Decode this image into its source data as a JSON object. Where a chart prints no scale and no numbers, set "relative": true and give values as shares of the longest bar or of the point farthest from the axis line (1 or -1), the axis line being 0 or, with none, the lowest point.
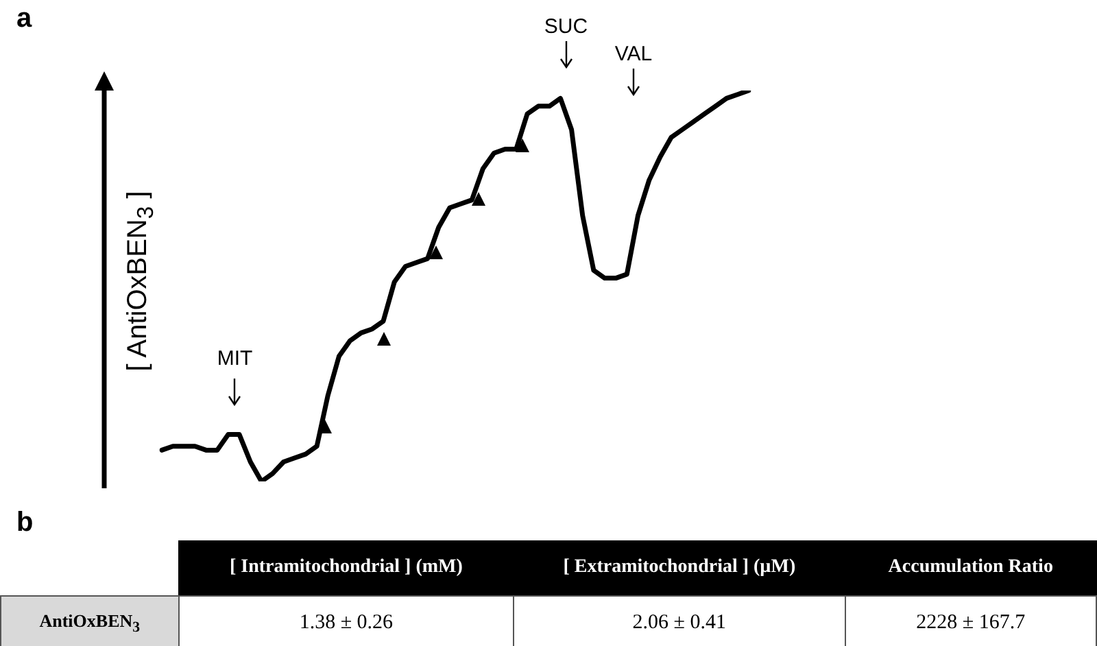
{
  "chart_data": [
    {
      "type": "line",
      "relative": true,
      "ylabel": "[ AntiOxBEN$_{3}$ ]",
      "color": "#000000",
      "marker": "none",
      "line_style": "solid",
      "legend": false,
      "categories": [
        null,
        null,
        null,
        null,
        null,
        null,
        null,
        null,
        null,
        null,
        null,
        null,
        null,
        null,
        null,
        null,
        null,
        null,
        null,
        null,
        null,
        null,
        null,
        null,
        null,
        null,
        null,
        null,
        null,
        null,
        null,
        null,
        null,
        null,
        null,
        null,
        null,
        null,
        null,
        null,
        null,
        null,
        null,
        null,
        null,
        null,
        null,
        null,
        null,
        null,
        null,
        null,
        null,
        null
      ],
      "values": [
        0.08,
        0.09,
        0.09,
        0.09,
        0.08,
        0.08,
        0.12,
        0.12,
        0.05,
        0,
        0.02,
        0.05,
        0.06,
        0.07,
        0.09,
        0.22,
        0.32,
        0.36,
        0.38,
        0.39,
        0.41,
        0.51,
        0.55,
        0.56,
        0.57,
        0.65,
        0.7,
        0.71,
        0.72,
        0.8,
        0.84,
        0.85,
        0.85,
        0.94,
        0.96,
        0.96,
        0.98,
        0.9,
        0.68,
        0.54,
        0.52,
        0.52,
        0.53,
        0.68,
        0.77,
        0.83,
        0.88,
        0.9,
        0.92,
        0.94,
        0.96,
        0.98,
        0.99,
        1
      ],
      "annotations": [
        "a",
        "MIT",
        "SUC",
        "VAL"
      ]
    },
    {
      "type": "other",
      "annotations": [
        "b"
      ],
      "categories": [
        "[ Intramitochondrial ] (mM)",
        "[ Extramitochondrial ] (µM)",
        "Accumulation Ratio"
      ],
      "y_categories": [
        "AntiOxBEN$_{3}$"
      ],
      "cell_labels": [
        [
          "1.38 ± 0.26",
          "2.06 ± 0.41",
          "2228 ± 167.7"
        ]
      ]
    }
  ]
}
